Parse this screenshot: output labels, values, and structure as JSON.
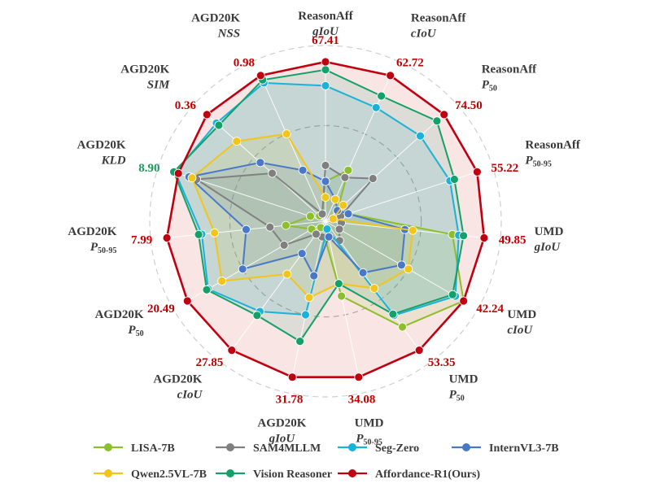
{
  "chart_data": {
    "type": "radar",
    "axes": [
      {
        "name": "ReasonAff",
        "metric": "gIoU",
        "sub": "",
        "best": "67.41",
        "best_color": "#c00000"
      },
      {
        "name": "ReasonAff",
        "metric": "cIoU",
        "sub": "",
        "best": "62.72",
        "best_color": "#c00000"
      },
      {
        "name": "ReasonAff",
        "metric": "P",
        "sub": "50",
        "best": "74.50",
        "best_color": "#c00000"
      },
      {
        "name": "ReasonAff",
        "metric": "P",
        "sub": "50-95",
        "best": "55.22",
        "best_color": "#c00000"
      },
      {
        "name": "UMD",
        "metric": "gIoU",
        "sub": "",
        "best": "49.85",
        "best_color": "#c00000"
      },
      {
        "name": "UMD",
        "metric": "cIoU",
        "sub": "",
        "best": "42.24",
        "best_color": "#c00000"
      },
      {
        "name": "UMD",
        "metric": "P",
        "sub": "50",
        "best": "53.35",
        "best_color": "#c00000"
      },
      {
        "name": "UMD",
        "metric": "P",
        "sub": "50-95",
        "best": "34.08",
        "best_color": "#c00000"
      },
      {
        "name": "AGD20K",
        "metric": "gIoU",
        "sub": "",
        "best": "31.78",
        "best_color": "#c00000"
      },
      {
        "name": "AGD20K",
        "metric": "cIoU",
        "sub": "",
        "best": "27.85",
        "best_color": "#c00000"
      },
      {
        "name": "AGD20K",
        "metric": "P",
        "sub": "50",
        "best": "20.49",
        "best_color": "#c00000"
      },
      {
        "name": "AGD20K",
        "metric": "P",
        "sub": "50-95",
        "best": "7.99",
        "best_color": "#c00000"
      },
      {
        "name": "AGD20K",
        "metric": "KLD",
        "sub": "",
        "best": "8.90",
        "best_color": "#1a9a5a"
      },
      {
        "name": "AGD20K",
        "metric": "SIM",
        "sub": "",
        "best": "0.36",
        "best_color": "#c00000"
      },
      {
        "name": "AGD20K",
        "metric": "NSS",
        "sub": "",
        "best": "0.98",
        "best_color": "#c00000"
      }
    ],
    "scale": "normalized 0-1 per axis",
    "series": [
      {
        "name": "LISA-7B",
        "color": "#8cbf2a",
        "values": [
          0.25,
          0.35,
          0.1,
          0.15,
          0.8,
          1.0,
          0.82,
          0.48,
          0.07,
          0.05,
          0.1,
          0.25,
          0.1,
          0.05,
          0.05
        ]
      },
      {
        "name": "SAM4MLLM",
        "color": "#808080",
        "values": [
          0.35,
          0.3,
          0.4,
          0.1,
          0.1,
          0.1,
          0.15,
          0.1,
          0.1,
          0.1,
          0.3,
          0.35,
          0.85,
          0.45,
          0.05
        ]
      },
      {
        "name": "Seg-Zero",
        "color": "#1ab2d8",
        "values": [
          0.85,
          0.78,
          0.8,
          0.82,
          0.84,
          0.94,
          0.73,
          0.05,
          0.6,
          0.7,
          0.85,
          0.78,
          0.99,
          0.92,
          0.95
        ]
      },
      {
        "name": "InternVL3-7B",
        "color": "#4a78c8",
        "values": [
          0.25,
          0.15,
          0.1,
          0.15,
          0.5,
          0.55,
          0.4,
          0.1,
          0.35,
          0.25,
          0.6,
          0.5,
          0.9,
          0.55,
          0.35
        ]
      },
      {
        "name": "Qwen2.5VL-7B",
        "color": "#f2c51a",
        "values": [
          0.15,
          0.15,
          0.15,
          0.05,
          0.55,
          0.6,
          0.52,
          0.4,
          0.49,
          0.41,
          0.75,
          0.7,
          0.88,
          0.75,
          0.6
        ]
      },
      {
        "name": "Vision Reasoner",
        "color": "#14a06a",
        "values": [
          0.95,
          0.86,
          0.94,
          0.85,
          0.87,
          0.92,
          0.72,
          0.4,
          0.77,
          0.73,
          0.86,
          0.8,
          1.0,
          0.9,
          0.97
        ]
      },
      {
        "name": "Affordance-R1(Ours)",
        "color": "#c00010",
        "fill": true,
        "values": [
          1.0,
          1.0,
          1.0,
          1.0,
          1.0,
          1.0,
          1.0,
          1.0,
          1.0,
          1.0,
          1.0,
          1.0,
          0.97,
          1.0,
          1.0
        ]
      }
    ]
  },
  "legend": {
    "items": [
      {
        "label": "LISA-7B",
        "color": "#8cbf2a"
      },
      {
        "label": "SAM4MLLM",
        "color": "#808080"
      },
      {
        "label": "Seg-Zero",
        "color": "#1ab2d8"
      },
      {
        "label": "InternVL3-7B",
        "color": "#4a78c8"
      },
      {
        "label": "Qwen2.5VL-7B",
        "color": "#f2c51a"
      },
      {
        "label": "Vision Reasoner",
        "color": "#14a06a"
      },
      {
        "label": "Affordance-R1(Ours)",
        "color": "#c00010"
      }
    ]
  }
}
